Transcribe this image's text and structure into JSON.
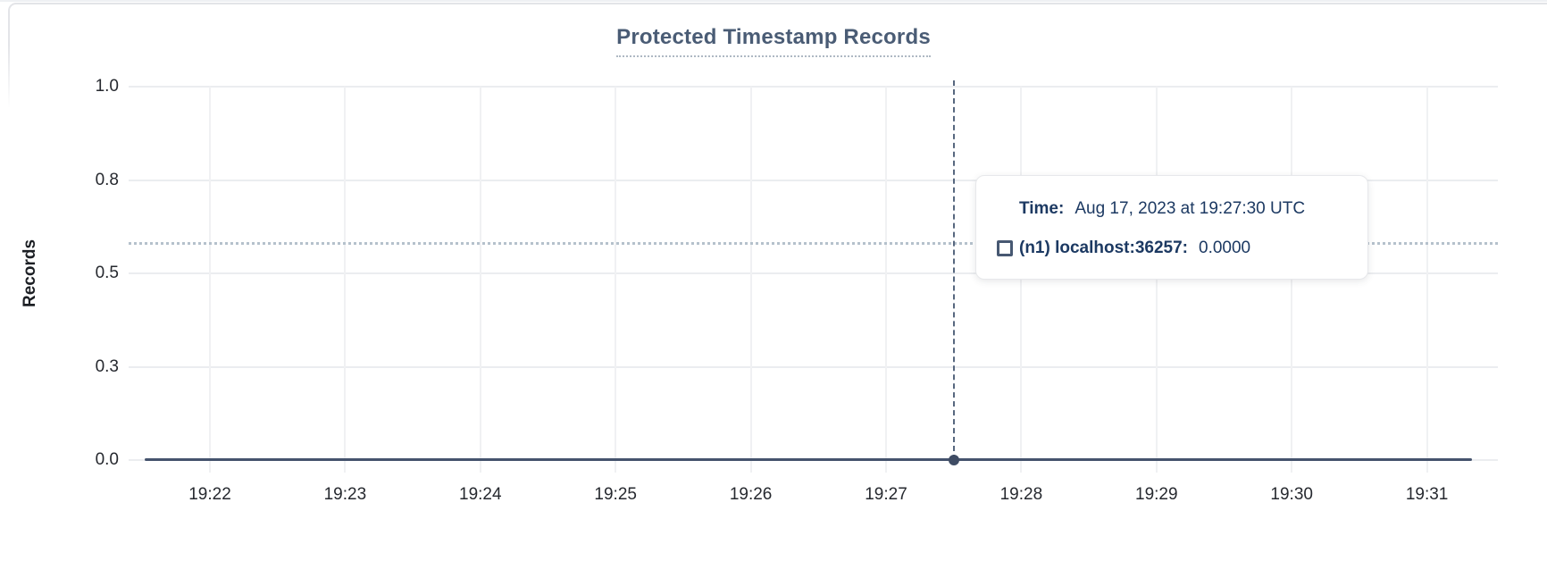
{
  "chart": {
    "title": "Protected Timestamp Records",
    "y_axis": {
      "label": "Records",
      "ticks": [
        "1.0",
        "0.8",
        "0.5",
        "0.3",
        "0.0"
      ]
    },
    "x_axis": {
      "ticks": [
        "19:22",
        "19:23",
        "19:24",
        "19:25",
        "19:26",
        "19:27",
        "19:28",
        "19:29",
        "19:30",
        "19:31"
      ]
    },
    "tooltip": {
      "time_label": "Time:",
      "time_value": "Aug 17, 2023 at 19:27:30 UTC",
      "series_swatch": "legend-square-icon",
      "series_label": "(n1) localhost:36257:",
      "series_value": "0.0000"
    },
    "colors": {
      "title": "#4a5c75",
      "series_line": "#45536d",
      "hover_dot": "#3f4c64",
      "crosshair": "#57677f",
      "guideline": "#b5c1cc",
      "tooltip_text": "#1c3962",
      "grid": "#ebedf0",
      "card_border": "#e3e4e8"
    }
  },
  "chart_data": {
    "type": "line",
    "title": "Protected Timestamp Records",
    "xlabel": "",
    "ylabel": "Records",
    "x": [
      "19:22",
      "19:23",
      "19:24",
      "19:25",
      "19:26",
      "19:27",
      "19:28",
      "19:29",
      "19:30",
      "19:31"
    ],
    "series": [
      {
        "name": "(n1) localhost:36257",
        "values": [
          0,
          0,
          0,
          0,
          0,
          0,
          0,
          0,
          0,
          0
        ]
      }
    ],
    "ylim": [
      0,
      1
    ],
    "y_tick_labels": [
      "0.0",
      "0.3",
      "0.5",
      "0.8",
      "1.0"
    ],
    "grid": true,
    "legend_position": "none",
    "hover_point": {
      "time": "Aug 17, 2023 at 19:27:30 UTC",
      "series": "(n1) localhost:36257",
      "value": "0.0000"
    }
  }
}
